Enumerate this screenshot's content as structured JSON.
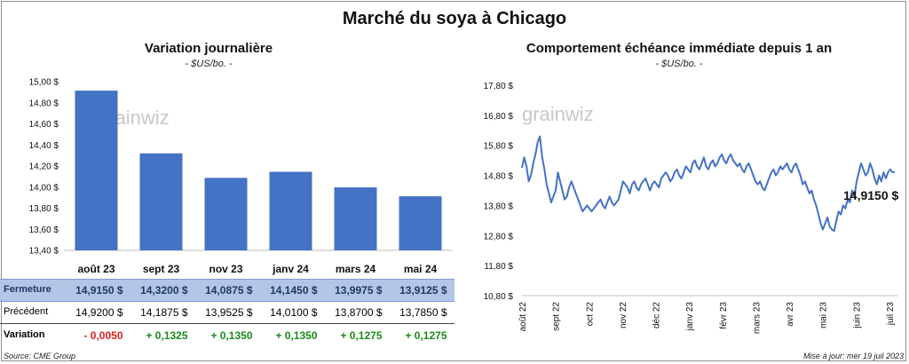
{
  "title": "Marché du soya à Chicago",
  "left_panel": {
    "title": "Variation  journalière",
    "unit": "- $US/bo. -",
    "table": {
      "rows": [
        {
          "label": "Fermeture",
          "values": [
            "14,9150  $",
            "14,3200  $",
            "14,0875  $",
            "14,1450  $",
            "13,9975  $",
            "13,9125  $"
          ]
        },
        {
          "label": "Précédent",
          "values": [
            "14,9200  $",
            "14,1875  $",
            "13,9525  $",
            "14,0100  $",
            "13,8700  $",
            "13,7850  $"
          ]
        },
        {
          "label": "Variation",
          "values": [
            "- 0,0050",
            "+ 0,1325",
            "+ 0,1350",
            "+ 0,1350",
            "+ 0,1275",
            "+ 0,1275"
          ]
        }
      ]
    },
    "colors": {
      "bar": "#4472c4",
      "header_bg": "#b4c6e7",
      "header_text": "#1f3864",
      "negative": "#e02020",
      "positive": "#1a8a1a"
    }
  },
  "right_panel": {
    "title": "Comportement  échéance immédiate depuis 1 an",
    "unit": "- $US/bo. -",
    "end_label": "14,9150 $",
    "line_color": "#4472c4"
  },
  "watermark": "grainwiz",
  "source": "Source: CME Group",
  "updated": "Mise à jour: mer 19 juil 2023",
  "chart_data": [
    {
      "type": "bar",
      "categories": [
        "août 23",
        "sept 23",
        "nov 23",
        "janv 24",
        "mars 24",
        "mai 24"
      ],
      "values": [
        14.915,
        14.32,
        14.0875,
        14.145,
        13.9975,
        13.9125
      ],
      "ylim": [
        13.4,
        15.0
      ],
      "yticks": [
        "15,00 $",
        "14,80 $",
        "14,60 $",
        "14,40 $",
        "14,20 $",
        "14,00 $",
        "13,80 $",
        "13,60 $",
        "13,40 $"
      ]
    },
    {
      "type": "line",
      "ylim": [
        10.8,
        17.8
      ],
      "yticks": [
        "17,80 $",
        "16,80 $",
        "15,80 $",
        "14,80 $",
        "13,80 $",
        "12,80 $",
        "11,80 $",
        "10,80 $"
      ],
      "xticks": [
        "août 22",
        "sept 22",
        "oct 22",
        "nov 22",
        "déc 22",
        "janv 23",
        "févr 23",
        "mars 23",
        "avr 23",
        "mai 23",
        "juin 23",
        "juil 23"
      ],
      "values": [
        15.05,
        15.4,
        15.1,
        14.6,
        14.8,
        15.2,
        15.5,
        15.9,
        16.1,
        15.4,
        15.0,
        14.5,
        14.2,
        13.9,
        14.1,
        14.3,
        14.9,
        14.6,
        14.3,
        14.0,
        14.1,
        14.4,
        14.6,
        14.4,
        14.2,
        14.0,
        13.8,
        13.6,
        13.7,
        13.8,
        13.7,
        13.6,
        13.7,
        13.8,
        13.9,
        14.0,
        13.8,
        13.7,
        13.9,
        14.1,
        13.9,
        13.8,
        13.9,
        14.0,
        14.3,
        14.6,
        14.5,
        14.4,
        14.2,
        14.5,
        14.6,
        14.4,
        14.3,
        14.5,
        14.6,
        14.7,
        14.5,
        14.3,
        14.5,
        14.6,
        14.5,
        14.4,
        14.7,
        14.8,
        14.9,
        14.8,
        14.6,
        14.7,
        14.9,
        15.0,
        14.8,
        14.7,
        14.9,
        15.1,
        15.0,
        14.9,
        15.2,
        15.3,
        15.1,
        15.0,
        15.2,
        15.4,
        15.1,
        15.0,
        15.2,
        15.3,
        15.1,
        15.2,
        15.4,
        15.5,
        15.3,
        15.2,
        15.4,
        15.5,
        15.3,
        15.2,
        15.1,
        15.2,
        15.0,
        14.9,
        15.1,
        15.2,
        15.0,
        14.8,
        14.6,
        14.5,
        14.6,
        14.4,
        14.3,
        14.5,
        14.7,
        14.9,
        15.0,
        14.8,
        14.9,
        15.1,
        15.0,
        15.1,
        15.2,
        15.0,
        14.9,
        15.1,
        15.2,
        15.0,
        14.8,
        14.5,
        14.6,
        14.4,
        14.2,
        14.3,
        14.0,
        13.8,
        13.5,
        13.2,
        13.0,
        13.2,
        13.4,
        13.1,
        13.0,
        12.95,
        13.3,
        13.6,
        13.5,
        13.8,
        13.7,
        14.0,
        13.9,
        14.3,
        14.1,
        14.6,
        14.9,
        15.2,
        15.0,
        14.8,
        14.9,
        15.2,
        15.0,
        14.7,
        14.5,
        14.8,
        14.6,
        14.9,
        14.7,
        14.9,
        15.0,
        14.9,
        14.915
      ]
    }
  ]
}
